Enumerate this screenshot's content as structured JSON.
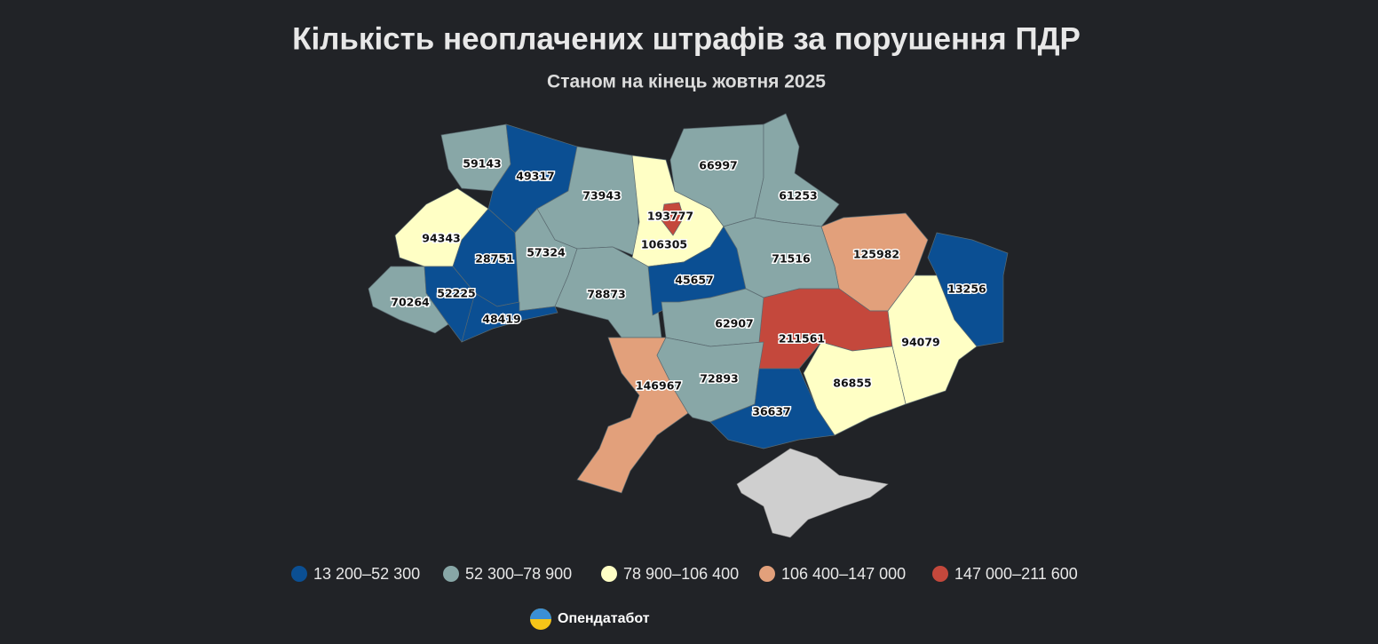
{
  "chart_data": {
    "type": "choropleth",
    "title": "Кількість неоплачених штрафів за порушення ПДР",
    "subtitle": "Станом на кінець жовтня 2025",
    "values": [
      59143,
      49317,
      73943,
      193777,
      106305,
      66997,
      61253,
      125982,
      13256,
      94343,
      28751,
      57324,
      78873,
      45657,
      71516,
      70264,
      52225,
      48419,
      62907,
      211561,
      94079,
      86855,
      146967,
      72893,
      36637
    ],
    "legend": [
      {
        "label": "13 200–52 300",
        "color": "#0b4f93",
        "range": [
          13200,
          52300
        ]
      },
      {
        "label": "52 300–78 900",
        "color": "#88a7a7",
        "range": [
          52300,
          78900
        ]
      },
      {
        "label": "78 900–106 400",
        "color": "#ffffc5",
        "range": [
          78900,
          106400
        ]
      },
      {
        "label": "106 400–147 000",
        "color": "#e2a07b",
        "range": [
          106400,
          147000
        ]
      },
      {
        "label": "147 000–211 600",
        "color": "#c4483c",
        "range": [
          147000,
          211600
        ]
      }
    ],
    "source": "Опендатабот"
  }
}
